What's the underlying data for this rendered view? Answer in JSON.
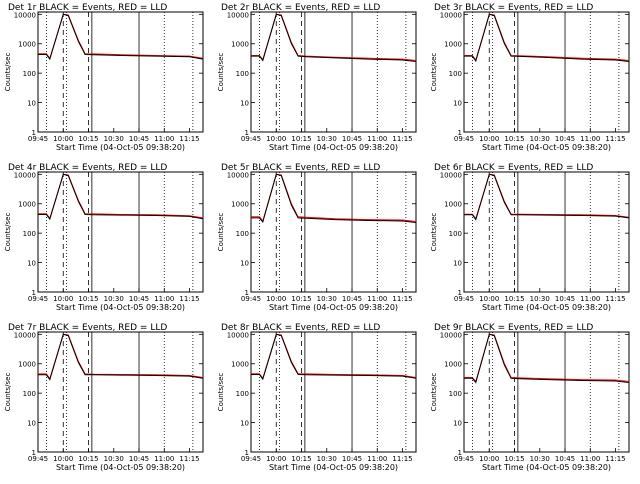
{
  "common": {
    "ylabel": "Counts/sec",
    "xlabel": "Start Time (04-Oct-05 09:38:20)",
    "x_ticks": [
      "09:45",
      "10:00",
      "10:15",
      "10:30",
      "10:45",
      "11:00",
      "11:15"
    ],
    "y_ticks": [
      "1",
      "10",
      "100",
      "1000",
      "10000"
    ],
    "y_scale": "log",
    "ylim": [
      1,
      12000
    ],
    "legend_series_black": "Events",
    "legend_series_red": "LLD",
    "colors": {
      "events": "#000000",
      "lld": "#ff0000",
      "axes": "#000000"
    }
  },
  "chart_data": [
    {
      "type": "line",
      "title": "Det 1r BLACK = Events, RED = LLD",
      "x_minutes_after_0945": [
        0,
        5,
        7,
        15,
        18,
        24,
        28,
        33,
        50,
        70,
        90,
        98
      ],
      "events": [
        430,
        430,
        300,
        10000,
        9000,
        1200,
        430,
        420,
        400,
        380,
        360,
        300
      ],
      "lld": [
        460,
        460,
        320,
        10000,
        9500,
        1300,
        460,
        450,
        420,
        400,
        380,
        320
      ]
    },
    {
      "type": "line",
      "title": "Det 2r BLACK = Events, RED = LLD",
      "x_minutes_after_0945": [
        0,
        5,
        7,
        15,
        18,
        24,
        28,
        33,
        50,
        70,
        90,
        98
      ],
      "events": [
        380,
        380,
        270,
        10000,
        9000,
        1000,
        380,
        360,
        330,
        300,
        280,
        250
      ],
      "lld": [
        400,
        400,
        290,
        10000,
        9500,
        1100,
        400,
        380,
        350,
        320,
        300,
        270
      ]
    },
    {
      "type": "line",
      "title": "Det 3r BLACK = Events, RED = LLD",
      "x_minutes_after_0945": [
        0,
        5,
        7,
        15,
        18,
        24,
        28,
        33,
        50,
        70,
        90,
        98
      ],
      "events": [
        380,
        380,
        260,
        10000,
        9000,
        1000,
        380,
        370,
        340,
        300,
        280,
        250
      ],
      "lld": [
        400,
        400,
        280,
        10000,
        9500,
        1100,
        400,
        390,
        360,
        320,
        300,
        270
      ]
    },
    {
      "type": "line",
      "title": "Det 4r BLACK = Events, RED = LLD",
      "x_minutes_after_0945": [
        0,
        5,
        7,
        15,
        18,
        24,
        28,
        33,
        50,
        70,
        90,
        98
      ],
      "events": [
        430,
        430,
        300,
        10000,
        9000,
        1200,
        430,
        420,
        410,
        400,
        370,
        310
      ],
      "lld": [
        460,
        460,
        320,
        10000,
        9500,
        1300,
        460,
        450,
        430,
        420,
        390,
        330
      ]
    },
    {
      "type": "line",
      "title": "Det 5r BLACK = Events, RED = LLD",
      "x_minutes_after_0945": [
        0,
        5,
        7,
        15,
        18,
        24,
        28,
        33,
        50,
        70,
        90,
        98
      ],
      "events": [
        330,
        330,
        240,
        10000,
        9000,
        900,
        330,
        320,
        290,
        270,
        260,
        230
      ],
      "lld": [
        360,
        360,
        260,
        10000,
        9500,
        1000,
        360,
        350,
        310,
        290,
        280,
        250
      ]
    },
    {
      "type": "line",
      "title": "Det 6r BLACK = Events, RED = LLD",
      "x_minutes_after_0945": [
        0,
        5,
        7,
        15,
        18,
        24,
        28,
        33,
        50,
        70,
        90,
        98
      ],
      "events": [
        420,
        420,
        290,
        10000,
        9000,
        1100,
        420,
        420,
        410,
        400,
        380,
        330
      ],
      "lld": [
        440,
        440,
        310,
        10000,
        9500,
        1200,
        440,
        440,
        430,
        420,
        400,
        350
      ]
    },
    {
      "type": "line",
      "title": "Det 7r BLACK = Events, RED = LLD",
      "x_minutes_after_0945": [
        0,
        5,
        7,
        15,
        18,
        24,
        28,
        33,
        50,
        70,
        90,
        98
      ],
      "events": [
        420,
        420,
        290,
        10000,
        9000,
        1100,
        420,
        420,
        410,
        400,
        380,
        320
      ],
      "lld": [
        450,
        450,
        310,
        10000,
        9500,
        1200,
        450,
        440,
        430,
        420,
        400,
        340
      ]
    },
    {
      "type": "line",
      "title": "Det 8r BLACK = Events, RED = LLD",
      "x_minutes_after_0945": [
        0,
        5,
        7,
        15,
        18,
        24,
        28,
        33,
        50,
        70,
        90,
        98
      ],
      "events": [
        430,
        430,
        300,
        10000,
        9000,
        1100,
        430,
        420,
        410,
        400,
        380,
        320
      ],
      "lld": [
        460,
        460,
        320,
        10000,
        9500,
        1200,
        460,
        450,
        430,
        420,
        400,
        340
      ]
    },
    {
      "type": "line",
      "title": "Det 9r BLACK = Events, RED = LLD",
      "x_minutes_after_0945": [
        0,
        5,
        7,
        15,
        18,
        24,
        28,
        33,
        50,
        70,
        90,
        98
      ],
      "events": [
        320,
        320,
        230,
        10000,
        9000,
        900,
        320,
        310,
        290,
        270,
        260,
        230
      ],
      "lld": [
        340,
        340,
        250,
        10000,
        9500,
        1000,
        340,
        330,
        310,
        290,
        280,
        250
      ]
    }
  ]
}
